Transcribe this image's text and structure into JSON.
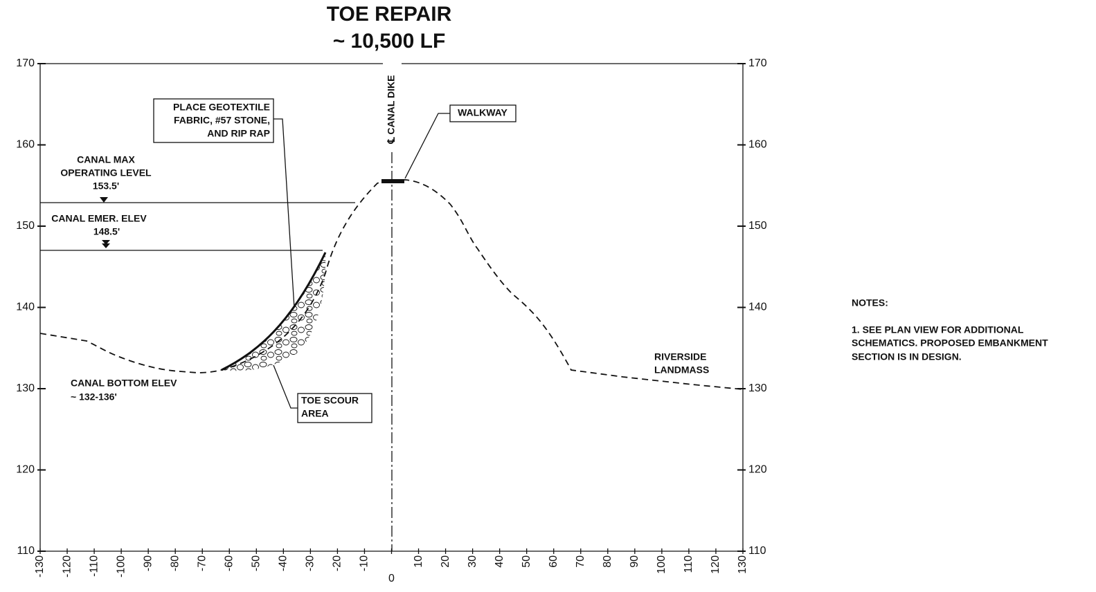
{
  "title": {
    "line1": "TOE REPAIR",
    "line2": "~ 10,500 LF"
  },
  "axes": {
    "x_ticks": [
      -130,
      -120,
      -110,
      -100,
      -90,
      -80,
      -70,
      -60,
      -50,
      -40,
      -30,
      -20,
      -10,
      0,
      10,
      20,
      30,
      40,
      50,
      60,
      70,
      80,
      90,
      100,
      110,
      120,
      130
    ],
    "y_ticks": [
      110,
      120,
      130,
      140,
      150,
      160,
      170
    ]
  },
  "labels": {
    "centerline": "℄ CANAL DIKE",
    "walkway": "WALKWAY",
    "geotextile": [
      "PLACE GEOTEXTILE",
      "FABRIC, #57 STONE,",
      "AND RIP RAP"
    ],
    "max_level": [
      "CANAL MAX",
      "OPERATING LEVEL",
      "153.5'"
    ],
    "emer_level": [
      "CANAL EMER. ELEV",
      "148.5'"
    ],
    "bottom": [
      "CANAL BOTTOM ELEV",
      "~ 132-136'"
    ],
    "toe_scour": [
      "TOE SCOUR",
      "AREA"
    ],
    "riverside": [
      "RIVERSIDE",
      "LANDMASS"
    ]
  },
  "notes": {
    "heading": "NOTES:",
    "lines": [
      "1. SEE PLAN VIEW FOR ADDITIONAL",
      "SCHEMATICS. PROPOSED EMBANKMENT",
      "SECTION IS IN DESIGN."
    ]
  }
}
